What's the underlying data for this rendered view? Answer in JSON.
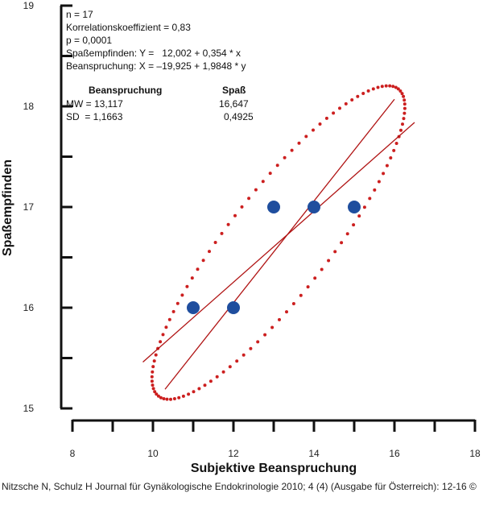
{
  "stats": {
    "n": "n = 17",
    "r": "Korrelationskoeffizient = 0,83",
    "p": "p = 0,0001",
    "reg_y": "Spaßempfinden: Y =   12,002 + 0,354 * x",
    "reg_x": "Beanspruchung: X = –19,925 + 1,9848 * y"
  },
  "table": {
    "col1_header": "Beanspruchung",
    "col2_header": "Spaß",
    "row1_label": "MW = 13,117",
    "row1_value": "16,647",
    "row2_label": "SD  = 1,1663",
    "row2_value": "0,4925"
  },
  "caption": "Nitzsche N, Schulz H Journal für Gynäkologische Endokrinologie 2010; 4 (4) (Ausgabe für Österreich): 12-16 ©",
  "colors": {
    "axis": "#111111",
    "point": "#1f4e9e",
    "ellipse": "#cc1f1f",
    "line": "#b01414"
  },
  "chart_data": {
    "type": "scatter",
    "xlabel": "Subjektive Beanspruchung",
    "ylabel": "Spaßempfinden",
    "xlim": [
      8,
      18
    ],
    "ylim": [
      15,
      19
    ],
    "xticks": [
      8,
      10,
      12,
      14,
      16,
      18
    ],
    "yticks": [
      15,
      16,
      17,
      18,
      19
    ],
    "points": [
      {
        "x": 11,
        "y": 16
      },
      {
        "x": 12,
        "y": 16
      },
      {
        "x": 13,
        "y": 17
      },
      {
        "x": 14,
        "y": 17
      },
      {
        "x": 15,
        "y": 17
      }
    ],
    "regression_lines": [
      {
        "from": [
          9.75,
          15.46
        ],
        "to": [
          16.5,
          17.84
        ]
      },
      {
        "from": [
          10.3,
          15.19
        ],
        "to": [
          16.0,
          18.07
        ]
      }
    ],
    "confidence_ellipse": {
      "center": [
        13.117,
        16.647
      ],
      "points": 110
    }
  }
}
